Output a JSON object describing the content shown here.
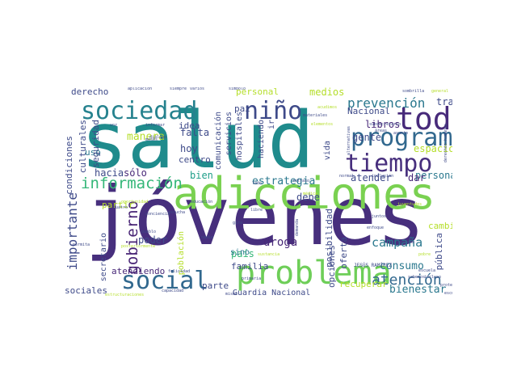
{
  "palette": {
    "dark_purple": "#482878",
    "deep_purple": "#440154",
    "indigo": "#3e4a89",
    "blue": "#31688e",
    "teal": "#26828e",
    "green_teal": "#1f9e89",
    "green": "#35b779",
    "light_green": "#6ece58",
    "lime": "#b5de2b",
    "yellow": "#fde725"
  },
  "words": [
    {
      "text": "salud",
      "color": "#1f8b8c"
    },
    {
      "text": "jóvenes",
      "color": "#472f7d"
    },
    {
      "text": "adicciones",
      "color": "#7ad151"
    },
    {
      "text": "sociedad",
      "color": "#26828e"
    },
    {
      "text": "niño",
      "color": "#3e4a89"
    },
    {
      "text": "toda",
      "color": "#472a7a"
    },
    {
      "text": "programa",
      "color": "#31688e"
    },
    {
      "text": "tiempo",
      "color": "#472f7d"
    },
    {
      "text": "social",
      "color": "#31688e"
    },
    {
      "text": "problema",
      "color": "#6ece58"
    },
    {
      "text": "información",
      "color": "#35b779"
    },
    {
      "text": "gobierno",
      "color": "#482475"
    },
    {
      "text": "importante",
      "color": "#3e4a89"
    },
    {
      "text": "atención",
      "color": "#31688e"
    },
    {
      "text": "prevención",
      "color": "#2a788e"
    },
    {
      "text": "estrategia",
      "color": "#2a788e"
    },
    {
      "text": "campaña",
      "color": "#2a788e"
    },
    {
      "text": "consumo",
      "color": "#2a788e"
    },
    {
      "text": "droga",
      "color": "#482878"
    },
    {
      "text": "familia",
      "color": "#3e4a89"
    },
    {
      "text": "bienestar",
      "color": "#2a788e"
    },
    {
      "text": "Guardia Nacional",
      "color": "#3e4a89"
    },
    {
      "text": "sociales",
      "color": "#3e4a89"
    },
    {
      "text": "atendiendo",
      "color": "#482878"
    },
    {
      "text": "espacio",
      "color": "#b5de2b"
    },
    {
      "text": "gente",
      "color": "#3e4a89"
    },
    {
      "text": "libros",
      "color": "#482878"
    },
    {
      "text": "Nacional",
      "color": "#3e4a89"
    },
    {
      "text": "trabajo",
      "color": "#3e4a89"
    },
    {
      "text": "medios",
      "color": "#b5de2b"
    },
    {
      "text": "persona",
      "color": "#2a788e"
    },
    {
      "text": "atender",
      "color": "#3e4a89"
    },
    {
      "text": "dar",
      "color": "#482878"
    },
    {
      "text": "debe",
      "color": "#3e4a89"
    },
    {
      "text": "bien",
      "color": "#1f9e89"
    },
    {
      "text": "país",
      "color": "#35b779"
    },
    {
      "text": "sino",
      "color": "#2a788e"
    },
    {
      "text": "poder",
      "color": "#3e4a89"
    },
    {
      "text": "parte",
      "color": "#3e4a89"
    },
    {
      "text": "hoy",
      "color": "#3e4a89"
    },
    {
      "text": "falta",
      "color": "#3e4a89"
    },
    {
      "text": "idea",
      "color": "#3e4a89"
    },
    {
      "text": "centro",
      "color": "#3e4a89"
    },
    {
      "text": "hacia",
      "color": "#3e4a89"
    },
    {
      "text": "sólo",
      "color": "#482878"
    },
    {
      "text": "manera",
      "color": "#b5de2b"
    },
    {
      "text": "uso",
      "color": "#2a788e"
    },
    {
      "text": "derecho",
      "color": "#3e4a89"
    },
    {
      "text": "partir",
      "color": "#b5de2b"
    },
    {
      "text": "paz",
      "color": "#3e4a89"
    },
    {
      "text": "personal",
      "color": "#b5de2b"
    },
    {
      "text": "vida",
      "color": "#3e4a89"
    },
    {
      "text": "cambio",
      "color": "#b5de2b"
    },
    {
      "text": "pública",
      "color": "#3e4a89"
    },
    {
      "text": "posibilidad",
      "color": "#3e4a89"
    },
    {
      "text": "oferta",
      "color": "#3e4a89"
    },
    {
      "text": "opciones",
      "color": "#3e4a89"
    },
    {
      "text": "recuperar",
      "color": "#b5de2b"
    },
    {
      "text": "culturales",
      "color": "#3e4a89"
    },
    {
      "text": "seguridad",
      "color": "#3e4a89"
    },
    {
      "text": "condiciones",
      "color": "#3e4a89"
    },
    {
      "text": "secretario",
      "color": "#3e4a89"
    },
    {
      "text": "comunicación",
      "color": "#3e4a89"
    },
    {
      "text": "servicios",
      "color": "#3e4a89"
    },
    {
      "text": "hospitales",
      "color": "#3e4a89"
    },
    {
      "text": "haciendo",
      "color": "#3e4a89"
    },
    {
      "text": "ir",
      "color": "#3e4a89"
    },
    {
      "text": "población",
      "color": "#b5de2b"
    },
    {
      "text": "JESÚS RAMÍREZ",
      "color": "#3e4a89"
    },
    {
      "text": "aplicación",
      "color": "#3e4a89"
    },
    {
      "text": "siempre",
      "color": "#3e4a89"
    },
    {
      "text": "varios",
      "color": "#3e4a89"
    },
    {
      "text": "símbolo",
      "color": "#3e4a89"
    },
    {
      "text": "sombrilla",
      "color": "#3e4a89"
    },
    {
      "text": "general",
      "color": "#b5de2b"
    },
    {
      "text": "derechos humanos",
      "color": "#3e4a89"
    },
    {
      "text": "diálogo",
      "color": "#3e4a89"
    },
    {
      "text": "escucha",
      "color": "#3e4a89"
    },
    {
      "text": "conciencia",
      "color": "#3e4a89"
    },
    {
      "text": "educación",
      "color": "#3e4a89"
    },
    {
      "text": "juntos",
      "color": "#3e4a89"
    },
    {
      "text": "enfoque",
      "color": "#3e4a89"
    },
    {
      "text": "juventudes",
      "color": "#b5de2b"
    },
    {
      "text": "inclusión",
      "color": "#3e4a89"
    },
    {
      "text": "normal",
      "color": "#3e4a89"
    },
    {
      "text": "retraso",
      "color": "#3e4a89"
    },
    {
      "text": "felicidad",
      "color": "#3e4a89"
    },
    {
      "text": "sustancia",
      "color": "#b5de2b"
    },
    {
      "text": "primaria",
      "color": "#3e4a89"
    },
    {
      "text": "capacidad",
      "color": "#3e4a89"
    },
    {
      "text": "proteger",
      "color": "#3e4a89"
    },
    {
      "text": "escuchar",
      "color": "#3e4a89"
    },
    {
      "text": "escuela",
      "color": "#3e4a89"
    },
    {
      "text": "sabemos",
      "color": "#3e4a89"
    },
    {
      "text": "incluso",
      "color": "#3e4a89"
    },
    {
      "text": "pobre",
      "color": "#b5de2b"
    },
    {
      "text": "sistema",
      "color": "#3e4a89"
    },
    {
      "text": "RAMÍREZ CUEVAS",
      "color": "#3e4a89"
    },
    {
      "text": "subsecretario",
      "color": "#3e4a89"
    },
    {
      "text": "alternativas",
      "color": "#3e4a89"
    },
    {
      "text": "elementos",
      "color": "#b5de2b"
    },
    {
      "text": "áreas",
      "color": "#3e4a89"
    },
    {
      "text": "asunto",
      "color": "#3e4a89"
    },
    {
      "text": "acudimos",
      "color": "#b5de2b"
    },
    {
      "text": "materiales",
      "color": "#3e4a89"
    },
    {
      "text": "informar",
      "color": "#3e4a89"
    },
    {
      "text": "meses",
      "color": "#3e4a89"
    },
    {
      "text": "voz",
      "color": "#3e4a89"
    },
    {
      "text": "permita",
      "color": "#3e4a89"
    },
    {
      "text": "cuatro",
      "color": "#3e4a89"
    },
    {
      "text": "pueblo",
      "color": "#3e4a89"
    },
    {
      "text": "posteriormente",
      "color": "#b5de2b"
    },
    {
      "text": "nadie",
      "color": "#3e4a89"
    },
    {
      "text": "mismo",
      "color": "#3e4a89"
    },
    {
      "text": "lado",
      "color": "#3e4a89"
    },
    {
      "text": "gira",
      "color": "#3e4a89"
    },
    {
      "text": "demanda",
      "color": "#3e4a89"
    },
    {
      "text": "libre",
      "color": "#3e4a89"
    },
    {
      "text": "médica",
      "color": "#b5de2b"
    },
    {
      "text": "oportunidad",
      "color": "#b5de2b"
    },
    {
      "text": "estructuraciones",
      "color": "#b5de2b"
    }
  ]
}
